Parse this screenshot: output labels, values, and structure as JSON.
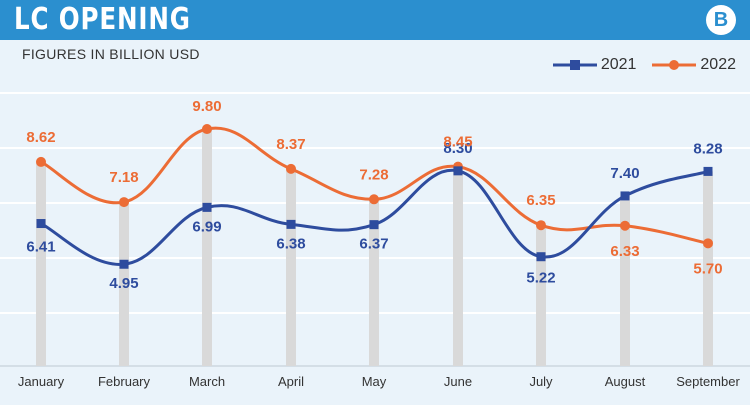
{
  "header": {
    "title": "LC OPENING",
    "logo": "B",
    "subtitle": "FIGURES IN BILLION USD"
  },
  "colors": {
    "series_2021": "#2e4c9e",
    "series_2022": "#ec6c35",
    "header_bg": "#2b8fcf",
    "pillar": "#d9d9d9"
  },
  "chart_data": {
    "type": "line",
    "title": "LC OPENING",
    "subtitle": "FIGURES IN BILLION USD",
    "categories": [
      "January",
      "February",
      "March",
      "April",
      "May",
      "June",
      "July",
      "August",
      "September"
    ],
    "series": [
      {
        "name": "2021",
        "values": [
          6.41,
          4.95,
          6.99,
          6.38,
          6.37,
          8.3,
          5.22,
          7.4,
          8.28
        ],
        "labels": [
          "6.41",
          "4.95",
          "6.99",
          "6.38",
          "6.37",
          "8.30",
          "5.22",
          "7.40",
          "8.28"
        ]
      },
      {
        "name": "2022",
        "values": [
          8.62,
          7.18,
          9.8,
          8.37,
          7.28,
          8.45,
          6.35,
          6.33,
          5.7
        ],
        "labels": [
          "8.62",
          "7.18",
          "9.80",
          "8.37",
          "7.28",
          "8.45",
          "6.35",
          "6.33",
          "5.70"
        ]
      }
    ],
    "ylim": [
      1.3,
      11.2
    ],
    "grid": true,
    "legend": "top-right"
  }
}
